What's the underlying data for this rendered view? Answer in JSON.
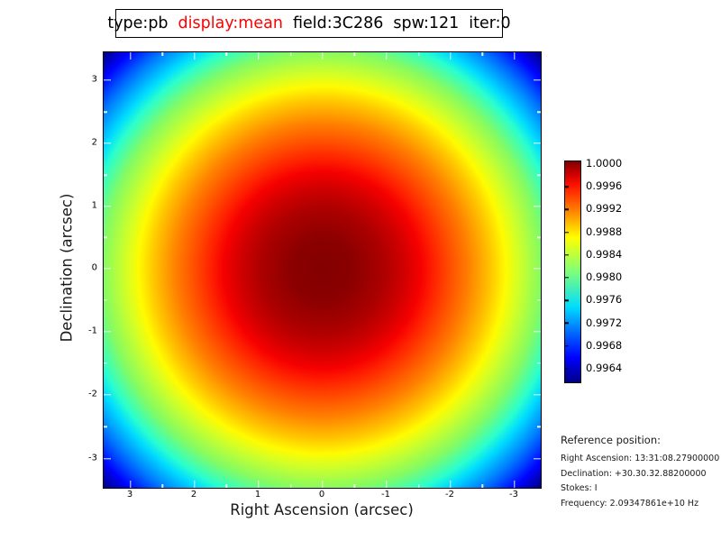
{
  "figure": {
    "title_tokens": [
      "type:pb",
      "display:mean",
      "field:3C286",
      "spw:121",
      "iter:0"
    ],
    "title_highlight_style": "color:#ff0000"
  },
  "axes": {
    "x_label": "Right Ascension (arcsec)",
    "y_label": "Declination (arcsec)",
    "x_tick_labels": [
      "3",
      "2",
      "1",
      "0",
      "-1",
      "-2",
      "-3"
    ],
    "y_tick_labels": [
      "3",
      "2",
      "1",
      "0",
      "-1",
      "-2",
      "-3"
    ]
  },
  "colorbar": {
    "tick_labels": [
      "1.0000",
      "0.9996",
      "0.9992",
      "0.9988",
      "0.9984",
      "0.9980",
      "0.9976",
      "0.9972",
      "0.9968",
      "0.9964"
    ]
  },
  "reference": {
    "heading": "Reference position:",
    "lines": [
      "Right Ascension: 13:31:08.27900000",
      "Declination: +30.30.32.88200000",
      "Stokes: I",
      "Frequency: 2.09347861e+10 Hz"
    ]
  },
  "chart_data": {
    "type": "heatmap",
    "title": "type:pb display:mean field:3C286 spw:121 iter:0",
    "xlabel": "Right Ascension (arcsec)",
    "ylabel": "Declination (arcsec)",
    "x_ticks": [
      3,
      2,
      1,
      0,
      -1,
      -2,
      -3
    ],
    "y_ticks": [
      3,
      2,
      1,
      0,
      -1,
      -2,
      -3
    ],
    "xlim": [
      3.45,
      -3.45
    ],
    "ylim": [
      -3.45,
      3.45
    ],
    "grid": false,
    "colormap": "jet",
    "colorbar_position": "right",
    "colorbar_ticks": [
      1.0,
      0.9996,
      0.9992,
      0.9988,
      0.9984,
      0.998,
      0.9976,
      0.9972,
      0.9968,
      0.9964
    ],
    "value_range": [
      0.9962,
      1.0
    ],
    "pattern": "radially symmetric primary-beam response, peak 1.0 at (0,0), decreasing quadratically to ~0.9962 at the field corners",
    "radial_profile": {
      "radius_arcsec": [
        0,
        1,
        2,
        3,
        4,
        4.88
      ],
      "value": [
        1.0,
        0.9998,
        0.9994,
        0.9986,
        0.9975,
        0.9962
      ]
    }
  }
}
